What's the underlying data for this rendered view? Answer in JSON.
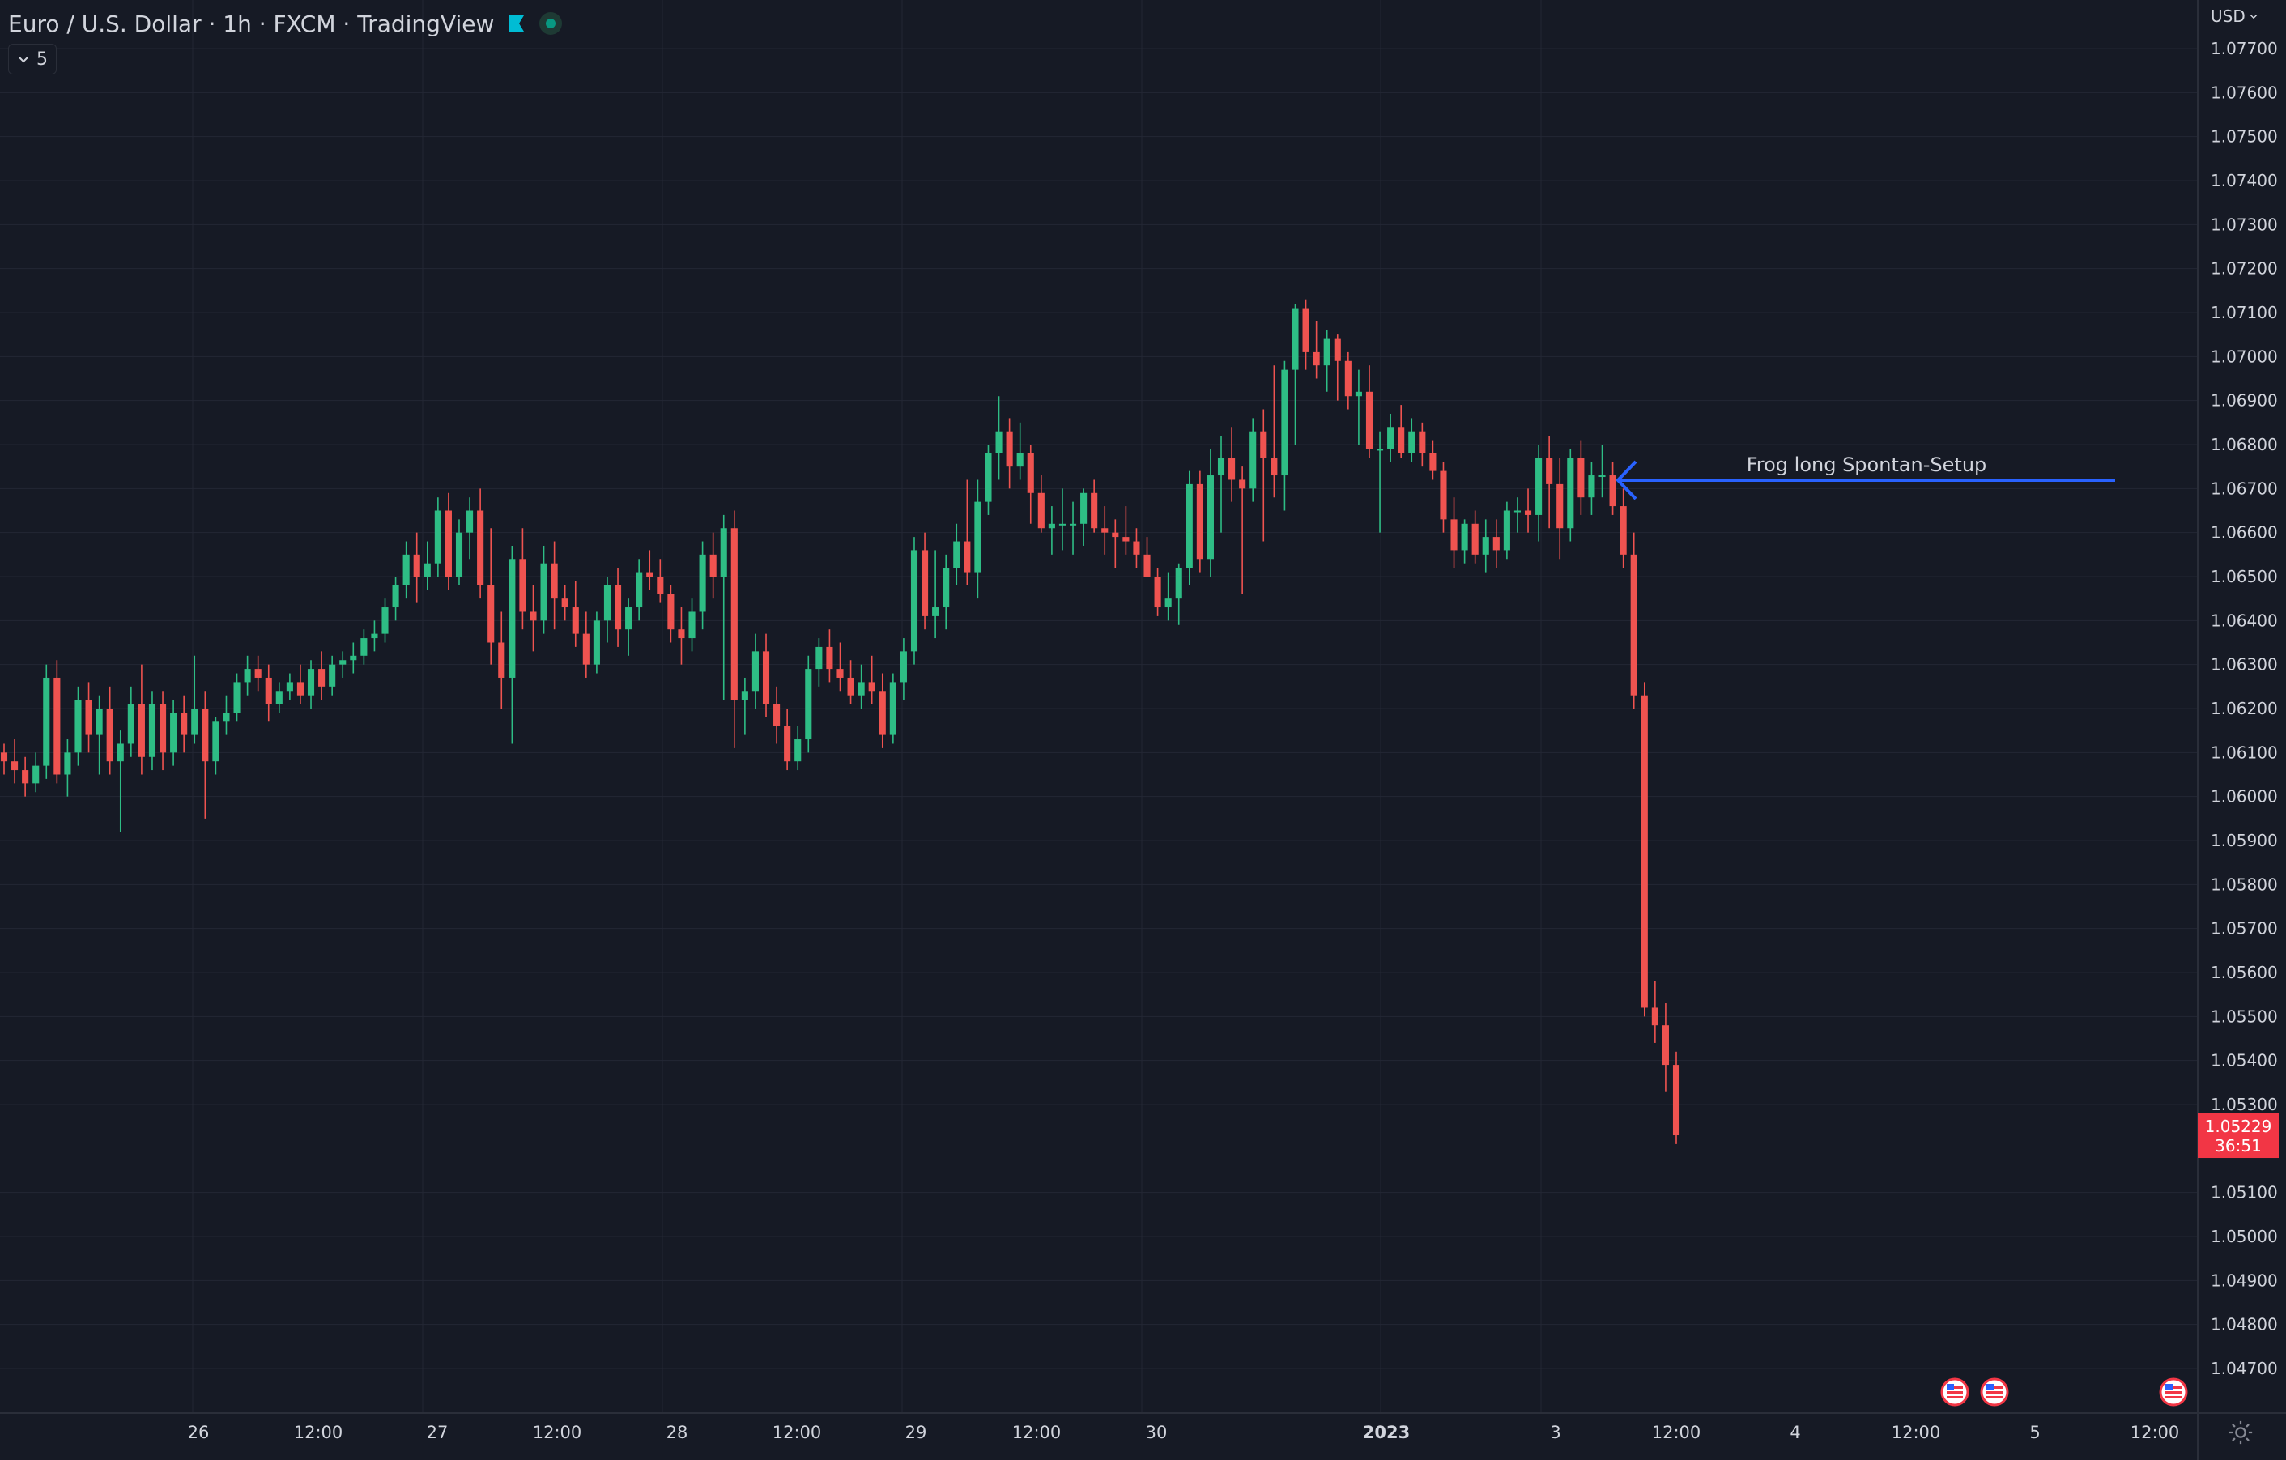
{
  "header": {
    "title": "Euro / U.S. Dollar · 1h · FXCM · TradingView",
    "indicator_count": "5",
    "currency": "USD"
  },
  "icons": {
    "flag": "bookmark-flag-icon",
    "status": "market-status-icon",
    "chevron": "chevron-down-icon",
    "settings": "gear-icon",
    "event": "us-flag-event-icon"
  },
  "colors": {
    "background": "#161a25",
    "grid": "#232734",
    "up": "#26a69a",
    "up_bright": "#2ebd85",
    "down": "#ef5350",
    "text": "#d1d4dc",
    "annotation_arrow": "#2962ff",
    "last_price_bg": "#f23645"
  },
  "chart_data": {
    "type": "candlestick",
    "y_axis": {
      "ylim": [
        1.0466,
        1.0774
      ],
      "ticks": [
        "1.07700",
        "1.07600",
        "1.07500",
        "1.07400",
        "1.07300",
        "1.07200",
        "1.07100",
        "1.07000",
        "1.06900",
        "1.06800",
        "1.06700",
        "1.06600",
        "1.06500",
        "1.06400",
        "1.06300",
        "1.06200",
        "1.06100",
        "1.06000",
        "1.05900",
        "1.05800",
        "1.05700",
        "1.05600",
        "1.05500",
        "1.05400",
        "1.05300",
        "1.05100",
        "1.05000",
        "1.04900",
        "1.04800",
        "1.04700"
      ]
    },
    "x_axis": {
      "ticks": [
        "26",
        "12:00",
        "27",
        "12:00",
        "28",
        "12:00",
        "29",
        "12:00",
        "30",
        "2023",
        "3",
        "12:00",
        "4",
        "12:00",
        "5",
        "12:00"
      ]
    },
    "last_price": {
      "value": "1.05229",
      "countdown": "36:51"
    },
    "annotation": {
      "text": "Frog long Spontan-Setup"
    },
    "candles": [
      [
        1.061,
        1.0612,
        1.0605,
        1.0608
      ],
      [
        1.0608,
        1.0613,
        1.0603,
        1.0606
      ],
      [
        1.0606,
        1.0609,
        1.06,
        1.0603
      ],
      [
        1.0603,
        1.061,
        1.0601,
        1.0607
      ],
      [
        1.0607,
        1.063,
        1.0604,
        1.0627
      ],
      [
        1.0627,
        1.0631,
        1.0603,
        1.0605
      ],
      [
        1.0605,
        1.0613,
        1.06,
        1.061
      ],
      [
        1.061,
        1.0625,
        1.0607,
        1.0622
      ],
      [
        1.0622,
        1.0626,
        1.061,
        1.0614
      ],
      [
        1.0614,
        1.0623,
        1.0605,
        1.062
      ],
      [
        1.062,
        1.0625,
        1.0605,
        1.0608
      ],
      [
        1.0608,
        1.0615,
        1.0592,
        1.0612
      ],
      [
        1.0612,
        1.0625,
        1.0609,
        1.0621
      ],
      [
        1.0621,
        1.063,
        1.0605,
        1.0609
      ],
      [
        1.0609,
        1.0624,
        1.0606,
        1.0621
      ],
      [
        1.0621,
        1.0624,
        1.0606,
        1.061
      ],
      [
        1.061,
        1.0622,
        1.0607,
        1.0619
      ],
      [
        1.0619,
        1.0623,
        1.061,
        1.0614
      ],
      [
        1.0614,
        1.0632,
        1.0612,
        1.062
      ],
      [
        1.062,
        1.0624,
        1.0595,
        1.0608
      ],
      [
        1.0608,
        1.0618,
        1.0605,
        1.0617
      ],
      [
        1.0617,
        1.0623,
        1.0614,
        1.0619
      ],
      [
        1.0619,
        1.0628,
        1.0617,
        1.0626
      ],
      [
        1.0626,
        1.0632,
        1.0623,
        1.0629
      ],
      [
        1.0629,
        1.0632,
        1.0624,
        1.0627
      ],
      [
        1.0627,
        1.063,
        1.0617,
        1.0621
      ],
      [
        1.0621,
        1.0626,
        1.0619,
        1.0624
      ],
      [
        1.0624,
        1.0628,
        1.0622,
        1.0626
      ],
      [
        1.0626,
        1.063,
        1.0621,
        1.0623
      ],
      [
        1.0623,
        1.0631,
        1.062,
        1.0629
      ],
      [
        1.0629,
        1.0633,
        1.0622,
        1.0625
      ],
      [
        1.0625,
        1.0632,
        1.0623,
        1.063
      ],
      [
        1.063,
        1.0633,
        1.0627,
        1.0631
      ],
      [
        1.0631,
        1.0635,
        1.0628,
        1.0632
      ],
      [
        1.0632,
        1.0638,
        1.063,
        1.0636
      ],
      [
        1.0636,
        1.064,
        1.0633,
        1.0637
      ],
      [
        1.0637,
        1.0645,
        1.0635,
        1.0643
      ],
      [
        1.0643,
        1.065,
        1.064,
        1.0648
      ],
      [
        1.0648,
        1.0658,
        1.0645,
        1.0655
      ],
      [
        1.0655,
        1.066,
        1.0644,
        1.065
      ],
      [
        1.065,
        1.0658,
        1.0647,
        1.0653
      ],
      [
        1.0653,
        1.0668,
        1.065,
        1.0665
      ],
      [
        1.0665,
        1.0669,
        1.0647,
        1.065
      ],
      [
        1.065,
        1.0663,
        1.0648,
        1.066
      ],
      [
        1.066,
        1.0668,
        1.0654,
        1.0665
      ],
      [
        1.0665,
        1.067,
        1.0645,
        1.0648
      ],
      [
        1.0648,
        1.0661,
        1.063,
        1.0635
      ],
      [
        1.0635,
        1.0642,
        1.062,
        1.0627
      ],
      [
        1.0627,
        1.0657,
        1.0612,
        1.0654
      ],
      [
        1.0654,
        1.0661,
        1.0638,
        1.0642
      ],
      [
        1.0642,
        1.0648,
        1.0633,
        1.064
      ],
      [
        1.064,
        1.0657,
        1.0637,
        1.0653
      ],
      [
        1.0653,
        1.0658,
        1.0638,
        1.0645
      ],
      [
        1.0645,
        1.0648,
        1.064,
        1.0643
      ],
      [
        1.0643,
        1.0649,
        1.0634,
        1.0637
      ],
      [
        1.0637,
        1.0642,
        1.0627,
        1.063
      ],
      [
        1.063,
        1.0642,
        1.0628,
        1.064
      ],
      [
        1.064,
        1.065,
        1.0635,
        1.0648
      ],
      [
        1.0648,
        1.0652,
        1.0634,
        1.0638
      ],
      [
        1.0638,
        1.0645,
        1.0632,
        1.0643
      ],
      [
        1.0643,
        1.0654,
        1.064,
        1.0651
      ],
      [
        1.0651,
        1.0656,
        1.0647,
        1.065
      ],
      [
        1.065,
        1.0654,
        1.0644,
        1.0646
      ],
      [
        1.0646,
        1.0648,
        1.0635,
        1.0638
      ],
      [
        1.0638,
        1.0643,
        1.063,
        1.0636
      ],
      [
        1.0636,
        1.0645,
        1.0633,
        1.0642
      ],
      [
        1.0642,
        1.0658,
        1.0638,
        1.0655
      ],
      [
        1.0655,
        1.066,
        1.0645,
        1.065
      ],
      [
        1.065,
        1.0664,
        1.0622,
        1.0661
      ],
      [
        1.0661,
        1.0665,
        1.0611,
        1.0622
      ],
      [
        1.0622,
        1.0627,
        1.0614,
        1.0624
      ],
      [
        1.0624,
        1.0637,
        1.062,
        1.0633
      ],
      [
        1.0633,
        1.0637,
        1.0618,
        1.0621
      ],
      [
        1.0621,
        1.0625,
        1.0612,
        1.0616
      ],
      [
        1.0616,
        1.062,
        1.0606,
        1.0608
      ],
      [
        1.0608,
        1.0616,
        1.0606,
        1.0613
      ],
      [
        1.0613,
        1.0632,
        1.061,
        1.0629
      ],
      [
        1.0629,
        1.0636,
        1.0625,
        1.0634
      ],
      [
        1.0634,
        1.0638,
        1.0626,
        1.0629
      ],
      [
        1.0629,
        1.0635,
        1.0624,
        1.0627
      ],
      [
        1.0627,
        1.0631,
        1.0621,
        1.0623
      ],
      [
        1.0623,
        1.063,
        1.062,
        1.0626
      ],
      [
        1.0626,
        1.0632,
        1.0621,
        1.0624
      ],
      [
        1.0624,
        1.0628,
        1.0611,
        1.0614
      ],
      [
        1.0614,
        1.0628,
        1.0612,
        1.0626
      ],
      [
        1.0626,
        1.0636,
        1.0622,
        1.0633
      ],
      [
        1.0633,
        1.0659,
        1.063,
        1.0656
      ],
      [
        1.0656,
        1.066,
        1.0638,
        1.0641
      ],
      [
        1.0641,
        1.0656,
        1.0636,
        1.0643
      ],
      [
        1.0643,
        1.0655,
        1.0638,
        1.0652
      ],
      [
        1.0652,
        1.0662,
        1.0648,
        1.0658
      ],
      [
        1.0658,
        1.0672,
        1.0648,
        1.0651
      ],
      [
        1.0651,
        1.0672,
        1.0645,
        1.0667
      ],
      [
        1.0667,
        1.068,
        1.0664,
        1.0678
      ],
      [
        1.0678,
        1.0691,
        1.0672,
        1.0683
      ],
      [
        1.0683,
        1.0686,
        1.067,
        1.0675
      ],
      [
        1.0675,
        1.0685,
        1.0672,
        1.0678
      ],
      [
        1.0678,
        1.068,
        1.0662,
        1.0669
      ],
      [
        1.0669,
        1.0673,
        1.066,
        1.0661
      ],
      [
        1.0661,
        1.0666,
        1.0655,
        1.0662
      ],
      [
        1.0662,
        1.067,
        1.0656,
        1.0662
      ],
      [
        1.0662,
        1.0667,
        1.0655,
        1.0662
      ],
      [
        1.0662,
        1.067,
        1.0657,
        1.0669
      ],
      [
        1.0669,
        1.0672,
        1.066,
        1.0661
      ],
      [
        1.0661,
        1.0666,
        1.0655,
        1.066
      ],
      [
        1.066,
        1.0663,
        1.0652,
        1.0659
      ],
      [
        1.0659,
        1.0666,
        1.0655,
        1.0658
      ],
      [
        1.0658,
        1.0661,
        1.0652,
        1.0655
      ],
      [
        1.0655,
        1.0659,
        1.065,
        1.065
      ],
      [
        1.065,
        1.0652,
        1.0641,
        1.0643
      ],
      [
        1.0643,
        1.0651,
        1.064,
        1.0645
      ],
      [
        1.0645,
        1.0653,
        1.0639,
        1.0652
      ],
      [
        1.0652,
        1.0674,
        1.0648,
        1.0671
      ],
      [
        1.0671,
        1.0674,
        1.0651,
        1.0654
      ],
      [
        1.0654,
        1.0679,
        1.065,
        1.0673
      ],
      [
        1.0673,
        1.0682,
        1.066,
        1.0677
      ],
      [
        1.0677,
        1.0684,
        1.0667,
        1.0672
      ],
      [
        1.0672,
        1.0675,
        1.0646,
        1.067
      ],
      [
        1.067,
        1.0686,
        1.0667,
        1.0683
      ],
      [
        1.0683,
        1.0688,
        1.0658,
        1.0677
      ],
      [
        1.0677,
        1.0698,
        1.0668,
        1.0673
      ],
      [
        1.0673,
        1.0699,
        1.0665,
        1.0697
      ],
      [
        1.0697,
        1.0712,
        1.068,
        1.0711
      ],
      [
        1.0711,
        1.0713,
        1.0697,
        1.0701
      ],
      [
        1.0701,
        1.0708,
        1.0695,
        1.0698
      ],
      [
        1.0698,
        1.0706,
        1.0692,
        1.0704
      ],
      [
        1.0704,
        1.0705,
        1.069,
        1.0699
      ],
      [
        1.0699,
        1.0701,
        1.0688,
        1.0691
      ],
      [
        1.0691,
        1.0697,
        1.068,
        1.0692
      ],
      [
        1.0692,
        1.0698,
        1.0677,
        1.0679
      ],
      [
        1.0679,
        1.0683,
        1.066,
        1.0679
      ],
      [
        1.0679,
        1.0687,
        1.0676,
        1.0684
      ],
      [
        1.0684,
        1.0689,
        1.0677,
        1.0678
      ],
      [
        1.0678,
        1.0686,
        1.0676,
        1.0683
      ],
      [
        1.0683,
        1.0685,
        1.0675,
        1.0678
      ],
      [
        1.0678,
        1.0681,
        1.0672,
        1.0674
      ],
      [
        1.0674,
        1.0676,
        1.066,
        1.0663
      ],
      [
        1.0663,
        1.0668,
        1.0652,
        1.0656
      ],
      [
        1.0656,
        1.0663,
        1.0653,
        1.0662
      ],
      [
        1.0662,
        1.0665,
        1.0653,
        1.0655
      ],
      [
        1.0655,
        1.0663,
        1.0651,
        1.0659
      ],
      [
        1.0659,
        1.0663,
        1.0652,
        1.0656
      ],
      [
        1.0656,
        1.0667,
        1.0654,
        1.0665
      ],
      [
        1.0665,
        1.0668,
        1.066,
        1.0665
      ],
      [
        1.0665,
        1.067,
        1.066,
        1.0664
      ],
      [
        1.0664,
        1.068,
        1.0658,
        1.0677
      ],
      [
        1.0677,
        1.0682,
        1.0661,
        1.0671
      ],
      [
        1.0671,
        1.0677,
        1.0654,
        1.0661
      ],
      [
        1.0661,
        1.0679,
        1.0658,
        1.0677
      ],
      [
        1.0677,
        1.0681,
        1.0664,
        1.0668
      ],
      [
        1.0668,
        1.0676,
        1.0664,
        1.0673
      ],
      [
        1.0673,
        1.068,
        1.0668,
        1.0673
      ],
      [
        1.0673,
        1.0676,
        1.0664,
        1.0666
      ],
      [
        1.0666,
        1.067,
        1.0652,
        1.0655
      ],
      [
        1.0655,
        1.066,
        1.062,
        1.0623
      ],
      [
        1.0623,
        1.0626,
        1.055,
        1.0552
      ],
      [
        1.0552,
        1.0558,
        1.0544,
        1.0548
      ],
      [
        1.0548,
        1.0553,
        1.0533,
        1.0539
      ],
      [
        1.0539,
        1.0542,
        1.0521,
        1.0523
      ]
    ]
  }
}
